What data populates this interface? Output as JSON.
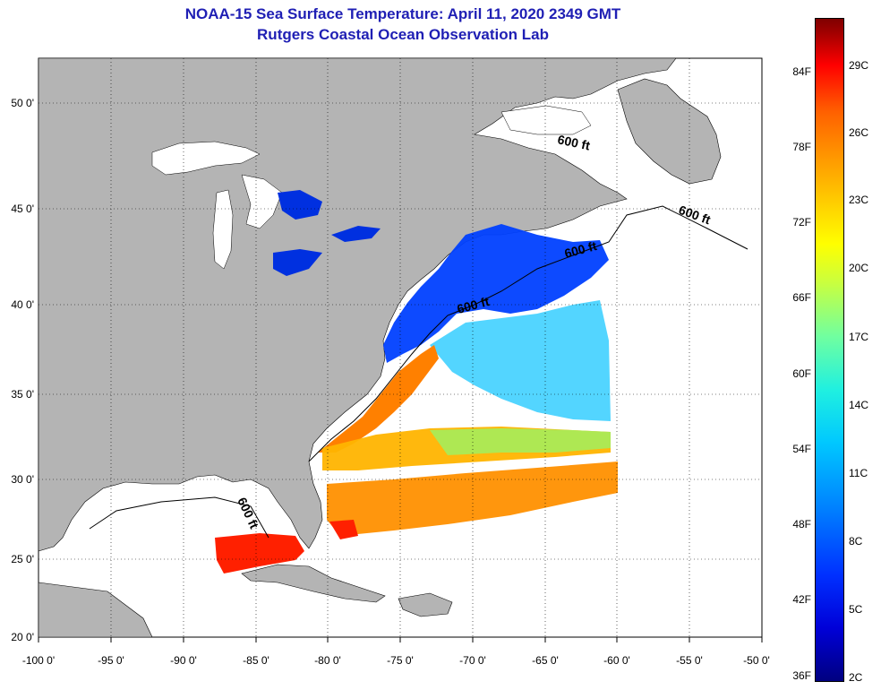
{
  "title": {
    "line1": "NOAA-15 Sea Surface Temperature:  April 11, 2020 2349 GMT",
    "line2": "Rutgers Coastal Ocean Observation Lab"
  },
  "map": {
    "lat_labels": [
      "50 0'",
      "45 0'",
      "40 0'",
      "35 0'",
      "30 0'",
      "25 0'",
      "20 0'"
    ],
    "lon_labels": [
      "-100 0'",
      "-95 0'",
      "-90 0'",
      "-85 0'",
      "-80 0'",
      "-75 0'",
      "-70 0'",
      "-65 0'",
      "-60 0'",
      "-55 0'",
      "-50 0'"
    ],
    "contour_label": "600 ft",
    "colors": {
      "land": "#b4b4b4",
      "ocean": "#ffffff",
      "grid": "#000000"
    }
  },
  "colorbar": {
    "fahrenheit": [
      "84F",
      "78F",
      "72F",
      "66F",
      "60F",
      "54F",
      "48F",
      "42F",
      "36F"
    ],
    "celsius": [
      "29C",
      "26C",
      "23C",
      "20C",
      "17C",
      "14C",
      "11C",
      "8C",
      "5C",
      "2C"
    ]
  }
}
